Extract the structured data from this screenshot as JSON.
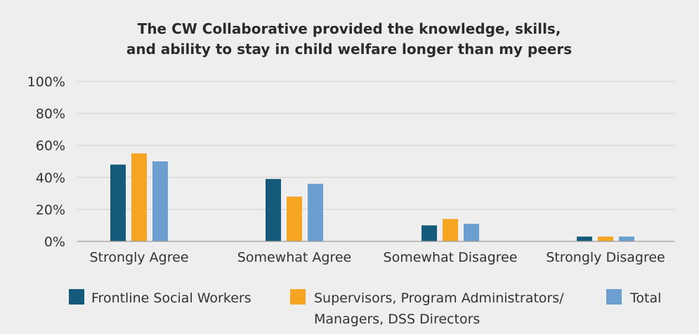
{
  "chart_data": {
    "type": "bar",
    "title": "The CW Collaborative provided the knowledge, skills, and ability to stay in child welfare longer than my peers",
    "title_lines": [
      "The CW Collaborative provided the knowledge, skills,",
      "and ability to stay in child welfare longer than my peers"
    ],
    "xlabel": "",
    "ylabel": "",
    "ylim": [
      0,
      100
    ],
    "y_ticks": [
      "0%",
      "20%",
      "40%",
      "60%",
      "80%",
      "100%"
    ],
    "y_tick_values": [
      0,
      20,
      40,
      60,
      80,
      100
    ],
    "grid": true,
    "legend_position": "bottom",
    "categories": [
      "Strongly Agree",
      "Somewhat Agree",
      "Somewhat Disagree",
      "Strongly Disagree"
    ],
    "series": [
      {
        "name": "Frontline Social Workers",
        "color": "#165a7b",
        "values": [
          48,
          39,
          10,
          3
        ]
      },
      {
        "name": "Supervisors, Program Administrators/ Managers, DSS Directors",
        "name_lines": [
          "Supervisors, Program Administrators/",
          "Managers, DSS Directors"
        ],
        "color": "#f5a522",
        "values": [
          55,
          28,
          14,
          3
        ]
      },
      {
        "name": "Total",
        "color": "#6a9fd0",
        "values": [
          50,
          36,
          11,
          3
        ]
      }
    ]
  }
}
